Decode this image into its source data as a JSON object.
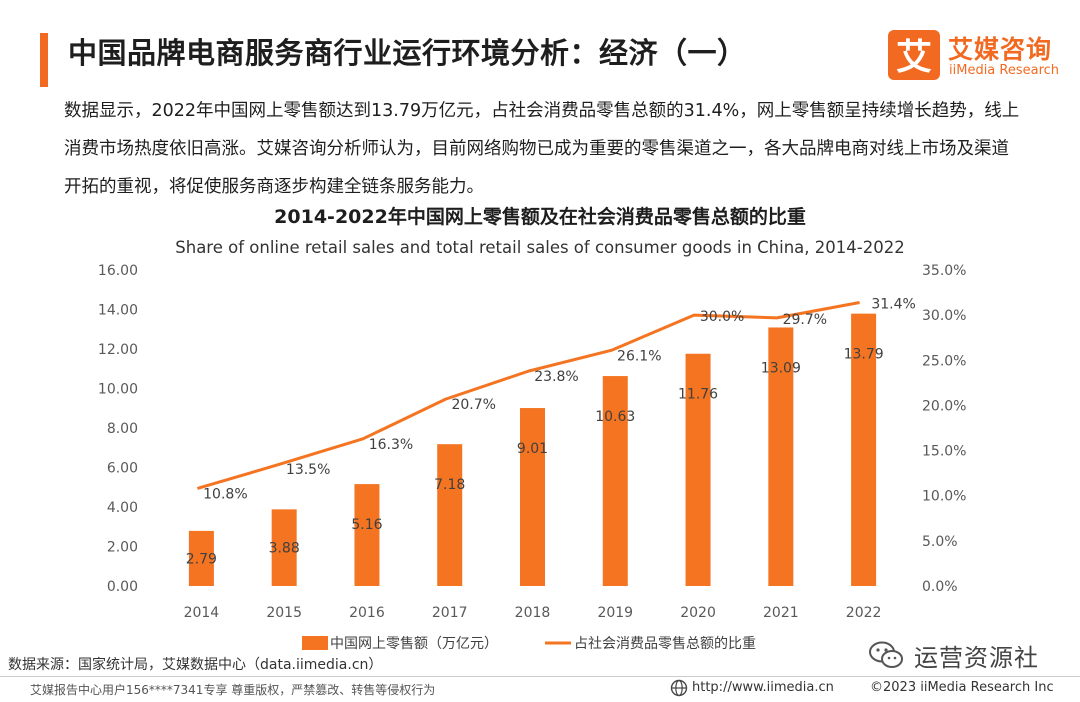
{
  "header": {
    "title": "中国品牌电商服务商行业运行环境分析：经济（一）",
    "logo_cn": "艾媒咨询",
    "logo_en": "iiMedia Research",
    "logo_glyph": "艾"
  },
  "intro": "数据显示，2022年中国网上零售额达到13.79万亿元，占社会消费品零售总额的31.4%，网上零售额呈持续增长趋势，线上消费市场热度依旧高涨。艾媒咨询分析师认为，目前网络购物已成为重要的零售渠道之一，各大品牌电商对线上市场及渠道开拓的重视，将促使服务商逐步构建全链条服务能力。",
  "chart_data": {
    "type": "bar",
    "title": "2014-2022年中国网上零售额及在社会消费品零售总额的比重",
    "subtitle": "Share of online retail sales and total retail sales of consumer goods in China, 2014-2022",
    "categories": [
      "2014",
      "2015",
      "2016",
      "2017",
      "2018",
      "2019",
      "2020",
      "2021",
      "2022"
    ],
    "series": [
      {
        "name": "中国网上零售额（万亿元）",
        "type": "bar",
        "axis": "left",
        "values": [
          2.79,
          3.88,
          5.16,
          7.18,
          9.01,
          10.63,
          11.76,
          13.09,
          13.79
        ],
        "labels": [
          "2.79",
          "3.88",
          "5.16",
          "7.18",
          "9.01",
          "10.63",
          "11.76",
          "13.09",
          "13.79"
        ]
      },
      {
        "name": "占社会消费品零售总额的比重",
        "type": "line",
        "axis": "right",
        "values": [
          10.8,
          13.5,
          16.3,
          20.7,
          23.8,
          26.1,
          30.0,
          29.7,
          31.4
        ],
        "labels": [
          "10.8%",
          "13.5%",
          "16.3%",
          "20.7%",
          "23.8%",
          "26.1%",
          "30.0%",
          "29.7%",
          "31.4%"
        ]
      }
    ],
    "ylim": [
      0,
      16
    ],
    "y2lim": [
      0,
      35
    ],
    "yticks": [
      "0.00",
      "2.00",
      "4.00",
      "6.00",
      "8.00",
      "10.00",
      "12.00",
      "14.00",
      "16.00"
    ],
    "y2ticks": [
      "0.0%",
      "5.0%",
      "10.0%",
      "15.0%",
      "20.0%",
      "25.0%",
      "30.0%",
      "35.0%"
    ],
    "grid": false,
    "legend": "bottom-center",
    "colors": {
      "bar": "#f47421",
      "line": "#f47421"
    }
  },
  "footer": {
    "source": "数据来源：国家统计局，艾媒数据中心（data.iimedia.cn）",
    "left": "艾媒报告中心用户156****7341专享 尊重版权，严禁篡改、转售等侵权行为",
    "url": "http://www.iimedia.cn",
    "copyright": "©2023  iiMedia Research Inc",
    "watermark": "运营资源社"
  }
}
